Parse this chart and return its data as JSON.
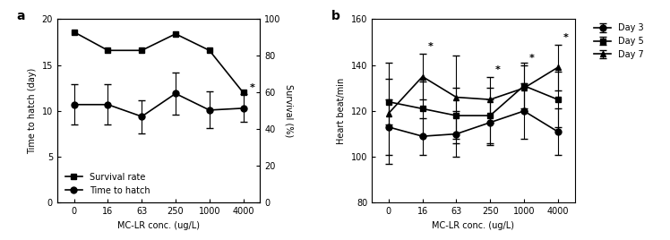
{
  "panel_a": {
    "x_labels": [
      "0",
      "16",
      "63",
      "250",
      "1000",
      "4000"
    ],
    "x_vals": [
      0,
      1,
      2,
      3,
      4,
      5
    ],
    "survival_rate": [
      93,
      83,
      83,
      92,
      83,
      60
    ],
    "time_to_hatch": [
      10.7,
      10.7,
      9.4,
      11.9,
      10.1,
      10.3
    ],
    "time_to_hatch_err": [
      2.2,
      2.2,
      1.8,
      2.3,
      2.0,
      1.5
    ],
    "survival_star_idx": 5,
    "ylabel_left": "Time to hatch (day)",
    "ylabel_right": "Survival (%)",
    "xlabel": "MC-LR conc. (ug/L)",
    "ylim_left": [
      0,
      20
    ],
    "ylim_right": [
      0,
      100
    ],
    "yticks_left": [
      0,
      5,
      10,
      15,
      20
    ],
    "yticks_right": [
      0,
      20,
      40,
      60,
      80,
      100
    ],
    "legend_survival": "Survival rate",
    "legend_hatch": "Time to hatch",
    "label": "a"
  },
  "panel_b": {
    "x_labels": [
      "0",
      "16",
      "63",
      "250",
      "1000",
      "4000"
    ],
    "x_vals": [
      0,
      1,
      2,
      3,
      4,
      5
    ],
    "day3": [
      113,
      109,
      110,
      115,
      120,
      111
    ],
    "day3_err": [
      12,
      8,
      10,
      10,
      12,
      10
    ],
    "day5": [
      124,
      121,
      118,
      118,
      131,
      125
    ],
    "day5_err": [
      10,
      12,
      12,
      12,
      10,
      12
    ],
    "day7": [
      119,
      135,
      126,
      125,
      130,
      139
    ],
    "day7_err": [
      22,
      10,
      18,
      10,
      10,
      10
    ],
    "ylabel": "Heart beat/min",
    "xlabel": "MC-LR conc. (ug/L)",
    "ylim": [
      80,
      160
    ],
    "yticks": [
      80,
      100,
      120,
      140,
      160
    ],
    "legend_day3": "Day 3",
    "legend_day5": "Day 5",
    "legend_day7": "Day 7",
    "label": "b"
  },
  "figure": {
    "bg_color": "#ffffff",
    "line_color": "#000000",
    "marker_square": "s",
    "marker_circle": "o",
    "marker_triangle": "^",
    "markersize": 5,
    "linewidth": 1.2,
    "fontsize_label": 7,
    "fontsize_tick": 7,
    "fontsize_legend": 7,
    "fontsize_panel_label": 10
  }
}
